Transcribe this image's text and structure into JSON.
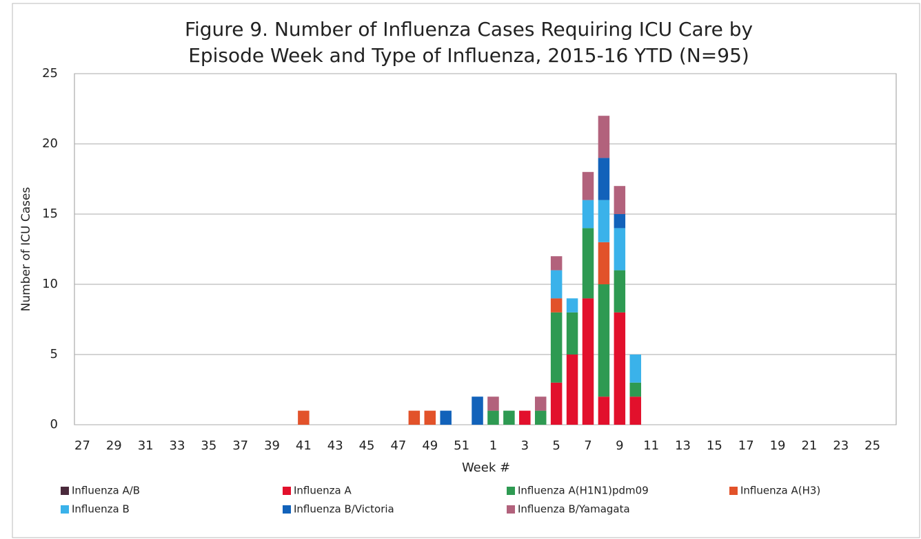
{
  "chart_data": {
    "type": "stacked_bar",
    "title": [
      "Figure 9. Number of Influenza Cases Requiring ICU Care by",
      "Episode Week and Type of Influenza, 2015-16 YTD (N=95)"
    ],
    "y_label": "Number of ICU Cases",
    "x_label": "Week #",
    "categories": [
      "27",
      null,
      "29",
      null,
      "31",
      null,
      "33",
      null,
      "35",
      null,
      "37",
      null,
      "39",
      null,
      "41",
      null,
      "43",
      null,
      "45",
      null,
      "47",
      null,
      "49",
      null,
      "51",
      null,
      "1",
      null,
      "3",
      null,
      "5",
      null,
      "7",
      null,
      "9",
      null,
      "11",
      null,
      "13",
      null,
      "15",
      null,
      "17",
      null,
      "19",
      null,
      "21",
      null,
      "23",
      null,
      "25",
      null
    ],
    "series": [
      {
        "name": "Influenza A/B",
        "color": "#4a2a3c",
        "values": [
          0,
          0,
          0,
          0,
          0,
          0,
          0,
          0,
          0,
          0,
          0,
          0,
          0,
          0,
          0,
          0,
          0,
          0,
          0,
          0,
          0,
          0,
          0,
          0,
          0,
          0,
          0,
          0,
          0,
          0,
          0,
          0,
          0,
          0,
          0,
          0,
          0,
          0,
          0,
          0,
          0,
          0,
          0,
          0,
          0,
          0,
          0,
          0,
          0,
          0,
          0,
          0
        ]
      },
      {
        "name": "Influenza A",
        "color": "#e2102c",
        "values": [
          0,
          0,
          0,
          0,
          0,
          0,
          0,
          0,
          0,
          0,
          0,
          0,
          0,
          0,
          0,
          0,
          0,
          0,
          0,
          0,
          0,
          0,
          0,
          0,
          0,
          0,
          0,
          0,
          1,
          0,
          3,
          5,
          9,
          2,
          8,
          2,
          0,
          0,
          0,
          0,
          0,
          0,
          0,
          0,
          0,
          0,
          0,
          0,
          0,
          0,
          0,
          0
        ]
      },
      {
        "name": "Influenza A(H1N1)pdm09",
        "color": "#2e9a52",
        "values": [
          0,
          0,
          0,
          0,
          0,
          0,
          0,
          0,
          0,
          0,
          0,
          0,
          0,
          0,
          0,
          0,
          0,
          0,
          0,
          0,
          0,
          0,
          0,
          0,
          0,
          0,
          1,
          1,
          0,
          1,
          5,
          3,
          5,
          8,
          3,
          1,
          0,
          0,
          0,
          0,
          0,
          0,
          0,
          0,
          0,
          0,
          0,
          0,
          0,
          0,
          0,
          0
        ]
      },
      {
        "name": "Influenza A(H3)",
        "color": "#e2522a",
        "values": [
          0,
          0,
          0,
          0,
          0,
          0,
          0,
          0,
          0,
          0,
          0,
          0,
          0,
          0,
          1,
          0,
          0,
          0,
          0,
          0,
          0,
          1,
          1,
          0,
          0,
          0,
          0,
          0,
          0,
          0,
          1,
          0,
          0,
          3,
          0,
          0,
          0,
          0,
          0,
          0,
          0,
          0,
          0,
          0,
          0,
          0,
          0,
          0,
          0,
          0,
          0,
          0
        ]
      },
      {
        "name": "Influenza B",
        "color": "#3ab2ea",
        "values": [
          0,
          0,
          0,
          0,
          0,
          0,
          0,
          0,
          0,
          0,
          0,
          0,
          0,
          0,
          0,
          0,
          0,
          0,
          0,
          0,
          0,
          0,
          0,
          0,
          0,
          0,
          0,
          0,
          0,
          0,
          2,
          1,
          2,
          3,
          3,
          2,
          0,
          0,
          0,
          0,
          0,
          0,
          0,
          0,
          0,
          0,
          0,
          0,
          0,
          0,
          0,
          0
        ]
      },
      {
        "name": "Influenza B/Victoria",
        "color": "#1262ba",
        "values": [
          0,
          0,
          0,
          0,
          0,
          0,
          0,
          0,
          0,
          0,
          0,
          0,
          0,
          0,
          0,
          0,
          0,
          0,
          0,
          0,
          0,
          0,
          0,
          1,
          0,
          2,
          0,
          0,
          0,
          0,
          0,
          0,
          0,
          3,
          1,
          0,
          0,
          0,
          0,
          0,
          0,
          0,
          0,
          0,
          0,
          0,
          0,
          0,
          0,
          0,
          0,
          0
        ]
      },
      {
        "name": "Influenza B/Yamagata",
        "color": "#b2627c",
        "values": [
          0,
          0,
          0,
          0,
          0,
          0,
          0,
          0,
          0,
          0,
          0,
          0,
          0,
          0,
          0,
          0,
          0,
          0,
          0,
          0,
          0,
          0,
          0,
          0,
          0,
          0,
          1,
          0,
          0,
          1,
          1,
          0,
          2,
          3,
          2,
          0,
          0,
          0,
          0,
          0,
          0,
          0,
          0,
          0,
          0,
          0,
          0,
          0,
          0,
          0,
          0,
          0
        ]
      }
    ],
    "ylim": [
      0,
      25
    ],
    "yticks": [
      0,
      5,
      10,
      15,
      20,
      25
    ],
    "grid": true
  }
}
